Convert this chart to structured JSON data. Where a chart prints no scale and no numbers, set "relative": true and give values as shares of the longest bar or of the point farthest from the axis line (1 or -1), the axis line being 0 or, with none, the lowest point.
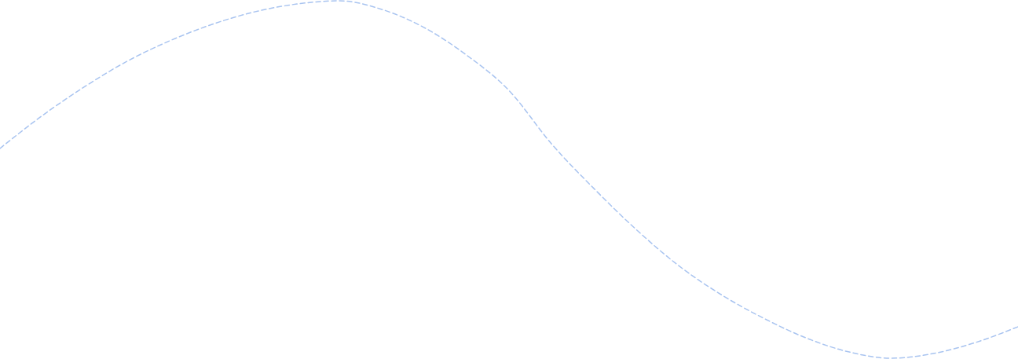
{
  "chart_data": {
    "type": "line",
    "relative": true,
    "line_style": "dashed",
    "categories": [
      null,
      null,
      null,
      null,
      null,
      null,
      null,
      null,
      null,
      null,
      null,
      null,
      null,
      null,
      null,
      null,
      null,
      null,
      null,
      null,
      null,
      null,
      null,
      null,
      null
    ],
    "series": [
      {
        "color": "#a9c4f0",
        "values": [
          0.587,
          0.679,
          0.76,
          0.831,
          0.888,
          0.934,
          0.969,
          0.991,
          1,
          0.976,
          0.925,
          0.848,
          0.749,
          0.6,
          0.475,
          0.36,
          0.259,
          0.178,
          0.112,
          0.057,
          0.018,
          0,
          0.013,
          0.044,
          0.088
        ]
      }
    ]
  }
}
